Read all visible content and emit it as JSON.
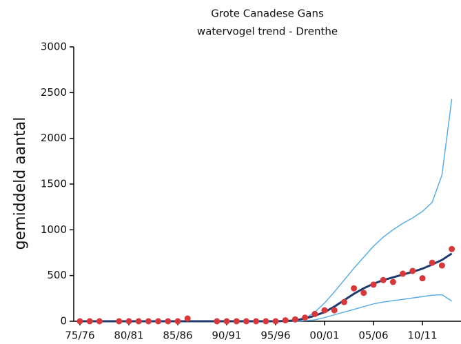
{
  "chart_data": {
    "type": "line",
    "title": "Grote Canadese Gans",
    "subtitle": "watervogel trend - Drenthe",
    "ylabel": "gemiddeld aantal",
    "categories": [
      "75/76",
      null,
      null,
      null,
      null,
      "80/81",
      null,
      null,
      null,
      null,
      "85/86",
      null,
      null,
      null,
      null,
      "90/91",
      null,
      null,
      null,
      null,
      "95/96",
      null,
      null,
      null,
      null,
      "00/01",
      null,
      null,
      null,
      null,
      "05/06",
      null,
      null,
      null,
      null,
      "10/11",
      null,
      null,
      null
    ],
    "ylim": [
      0,
      3000
    ],
    "yticks": [
      0,
      500,
      1000,
      1500,
      2000,
      2500,
      3000
    ],
    "series": [
      {
        "color": "#5aaee6",
        "style": "line",
        "values": [
          null,
          null,
          null,
          null,
          null,
          null,
          null,
          null,
          null,
          null,
          null,
          null,
          null,
          null,
          null,
          null,
          null,
          null,
          null,
          null,
          null,
          null,
          0,
          30,
          100,
          200,
          320,
          450,
          580,
          700,
          820,
          920,
          1000,
          1070,
          1130,
          1200,
          1300,
          1600,
          2430
        ]
      },
      {
        "color": "#5aaee6",
        "style": "line",
        "values": [
          null,
          null,
          null,
          null,
          null,
          null,
          null,
          null,
          null,
          null,
          null,
          null,
          null,
          null,
          null,
          null,
          null,
          null,
          null,
          null,
          null,
          null,
          0,
          5,
          15,
          40,
          70,
          100,
          130,
          160,
          190,
          210,
          225,
          240,
          255,
          270,
          285,
          290,
          220
        ]
      },
      {
        "color": "#1f3a6e",
        "style": "line",
        "values": [
          0,
          0,
          0,
          0,
          0,
          0,
          0,
          0,
          0,
          0,
          0,
          0,
          0,
          0,
          0,
          0,
          0,
          0,
          0,
          0,
          0,
          3,
          10,
          30,
          60,
          100,
          160,
          230,
          300,
          360,
          410,
          450,
          480,
          510,
          540,
          575,
          620,
          670,
          740
        ]
      },
      {
        "color": "#d9383a",
        "style": "markers",
        "values": [
          0,
          0,
          0,
          null,
          0,
          0,
          0,
          0,
          0,
          0,
          0,
          30,
          null,
          null,
          0,
          0,
          0,
          0,
          0,
          0,
          0,
          10,
          20,
          40,
          80,
          120,
          120,
          210,
          360,
          310,
          400,
          450,
          430,
          520,
          550,
          470,
          640,
          610,
          790
        ]
      }
    ]
  }
}
